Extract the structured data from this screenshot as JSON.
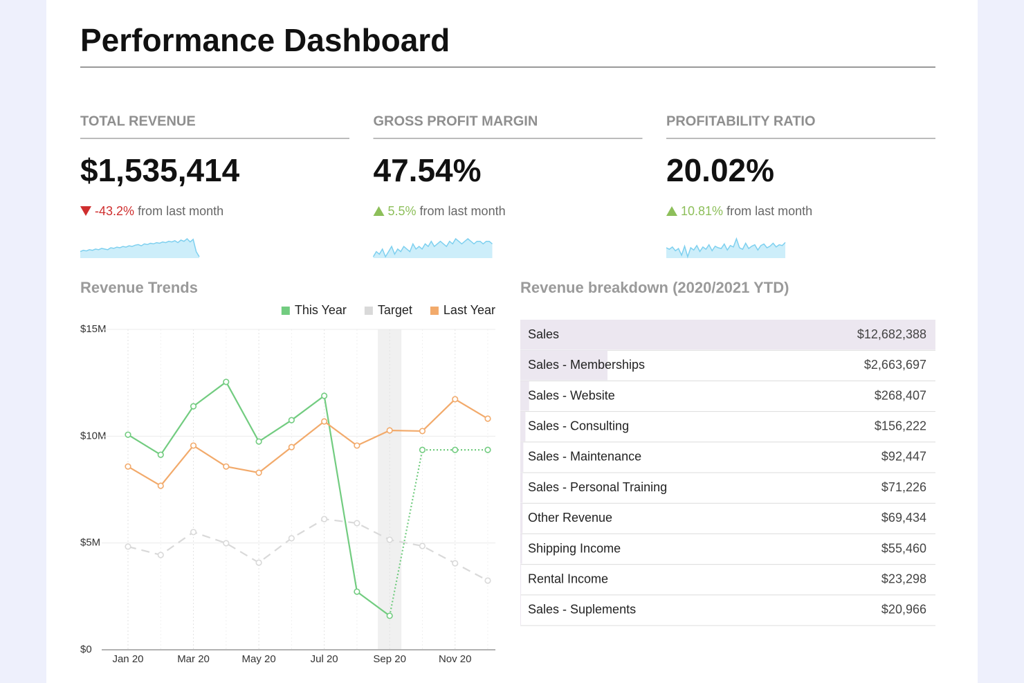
{
  "header": {
    "title": "Performance Dashboard"
  },
  "kpis": [
    {
      "label": "TOTAL REVENUE",
      "value": "$1,535,414",
      "change": "-43.2%",
      "direction": "down",
      "note": "from last month",
      "sparkline": [
        30,
        32,
        31,
        33,
        32,
        34,
        33,
        35,
        34,
        33,
        36,
        35,
        37,
        36,
        38,
        37,
        39,
        38,
        40,
        41,
        39,
        42,
        41,
        43,
        42,
        44,
        43,
        45,
        44,
        46,
        45,
        47,
        44,
        48,
        46,
        50,
        45,
        49,
        30,
        22
      ]
    },
    {
      "label": "GROSS PROFIT MARGIN",
      "value": "47.54%",
      "change": "5.5%",
      "direction": "up",
      "note": "from last month",
      "sparkline": [
        40,
        42,
        41,
        43,
        40,
        42,
        44,
        41,
        43,
        42,
        44,
        43,
        42,
        45,
        43,
        44,
        43,
        45,
        44,
        46,
        44,
        45,
        46,
        45,
        44,
        46,
        45,
        47,
        46,
        45,
        46,
        47,
        46,
        45,
        46,
        46,
        45,
        46,
        46,
        45
      ]
    },
    {
      "label": "PROFITABILITY RATIO",
      "value": "20.02%",
      "change": "10.81%",
      "direction": "up",
      "note": "from last month",
      "sparkline": [
        30,
        28,
        31,
        26,
        29,
        20,
        32,
        18,
        30,
        27,
        33,
        25,
        31,
        28,
        34,
        26,
        32,
        30,
        29,
        35,
        27,
        33,
        31,
        42,
        30,
        28,
        36,
        29,
        32,
        34,
        27,
        33,
        35,
        30,
        32,
        36,
        31,
        34,
        33,
        37
      ]
    }
  ],
  "chart_data": {
    "type": "line",
    "title": "Revenue Trends",
    "categories": [
      "Jan 20",
      null,
      "Mar 20",
      null,
      "May 20",
      null,
      "Jul 20",
      null,
      "Sep 20",
      null,
      "Nov 20",
      null
    ],
    "series": [
      {
        "name": "This Year",
        "color": "#72cc80",
        "dotted_from": 8,
        "values": [
          10070000,
          9130000,
          11400000,
          12540000,
          9750000,
          10750000,
          11890000,
          2720000,
          1590000,
          9360000,
          9360000,
          9360000
        ]
      },
      {
        "name": "Target",
        "color": "#d9d9d9",
        "dashed": true,
        "values": [
          4830000,
          4440000,
          5510000,
          4990000,
          4080000,
          5220000,
          6120000,
          5930000,
          5150000,
          4860000,
          4050000,
          3240000
        ]
      },
      {
        "name": "Last Year",
        "color": "#f2aa6b",
        "values": [
          8580000,
          7680000,
          9560000,
          8580000,
          8290000,
          9490000,
          10690000,
          9560000,
          10270000,
          10240000,
          11730000,
          10820000
        ]
      }
    ],
    "highlight": 8,
    "ylim": [
      0,
      15000000
    ],
    "yticks": [
      {
        "value": 0,
        "label": "$0"
      },
      {
        "value": 5000000,
        "label": "$5M"
      },
      {
        "value": 10000000,
        "label": "$10M"
      },
      {
        "value": 15000000,
        "label": "$15M"
      }
    ],
    "grid": true
  },
  "breakdown": {
    "title": "Revenue breakdown (2020/2021 YTD)",
    "rows": [
      {
        "name": "Sales",
        "amount": 12682388,
        "amount_label": "$12,682,388"
      },
      {
        "name": "Sales - Memberships",
        "amount": 2663697,
        "amount_label": "$2,663,697"
      },
      {
        "name": "Sales - Website",
        "amount": 268407,
        "amount_label": "$268,407"
      },
      {
        "name": "Sales - Consulting",
        "amount": 156222,
        "amount_label": "$156,222"
      },
      {
        "name": "Sales - Maintenance",
        "amount": 92447,
        "amount_label": "$92,447"
      },
      {
        "name": "Sales - Personal Training",
        "amount": 71226,
        "amount_label": "$71,226"
      },
      {
        "name": "Other Revenue",
        "amount": 69434,
        "amount_label": "$69,434"
      },
      {
        "name": "Shipping Income",
        "amount": 55460,
        "amount_label": "$55,460"
      },
      {
        "name": "Rental Income",
        "amount": 23298,
        "amount_label": "$23,298"
      },
      {
        "name": "Sales - Suplements",
        "amount": 20966,
        "amount_label": "$20,966"
      }
    ]
  }
}
